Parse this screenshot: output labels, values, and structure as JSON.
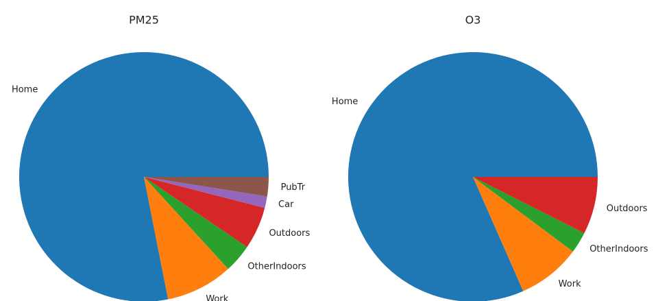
{
  "chart_data": [
    {
      "type": "pie",
      "title": "PM25",
      "categories": [
        "Home",
        "Work",
        "OtherIndoors",
        "Outdoors",
        "Car",
        "PubTr"
      ],
      "values": [
        78.1,
        8.7,
        3.7,
        5.5,
        1.5,
        2.5
      ],
      "colors": [
        "#1f77b4",
        "#ff7f0e",
        "#2ca02c",
        "#d62728",
        "#9467bd",
        "#8c564b"
      ]
    },
    {
      "type": "pie",
      "title": "O3",
      "categories": [
        "Home",
        "Work",
        "OtherIndoors",
        "Outdoors"
      ],
      "values": [
        81.6,
        8.2,
        2.75,
        7.45
      ],
      "colors": [
        "#1f77b4",
        "#ff7f0e",
        "#2ca02c",
        "#d62728"
      ]
    }
  ]
}
